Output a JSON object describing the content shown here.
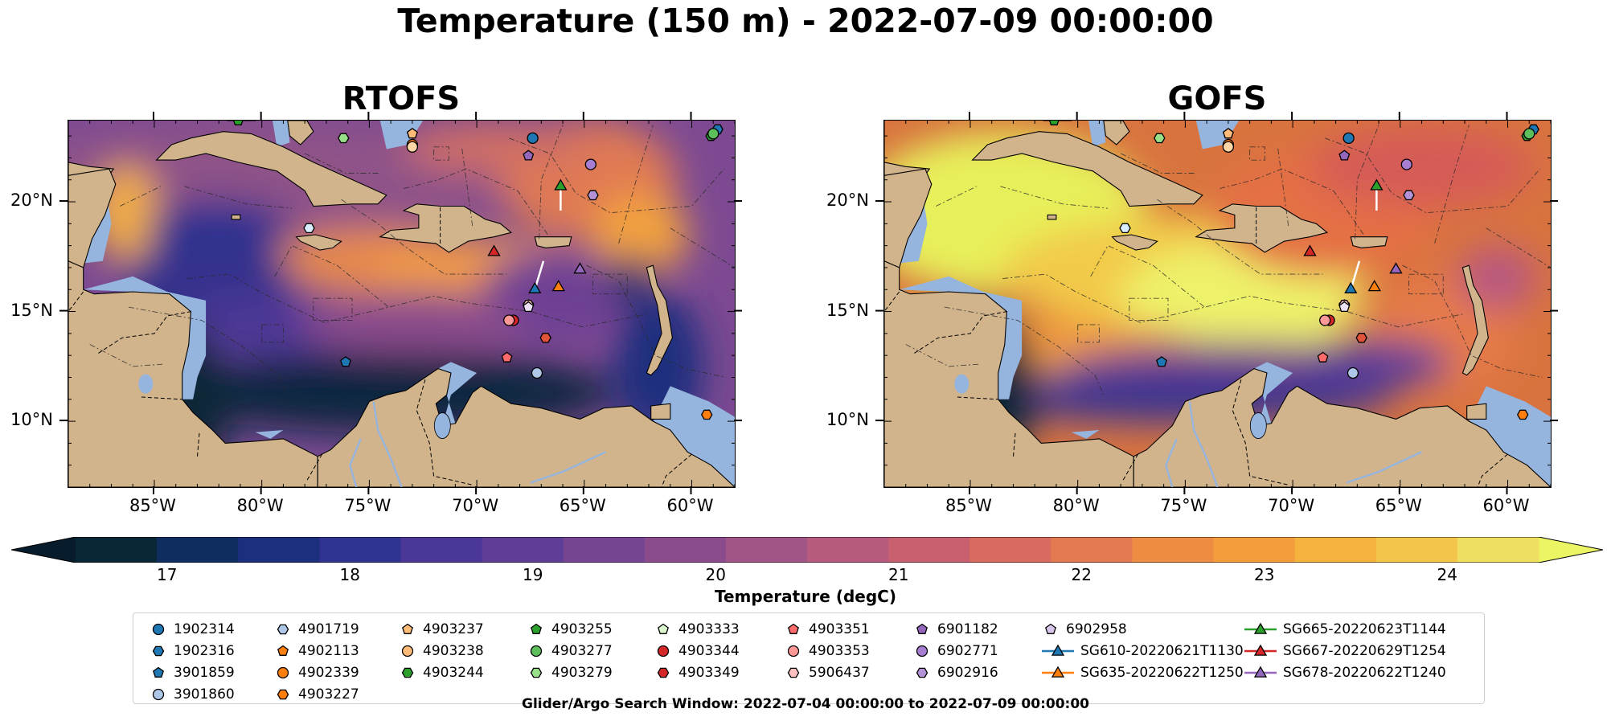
{
  "figure": {
    "title": "Temperature (150 m) - 2022-07-09 00:00:00",
    "footer": "Glider/Argo Search Window: 2022-07-04 00:00:00 to 2022-07-09 00:00:00"
  },
  "maps": [
    {
      "id": "rtofs",
      "title": "RTOFS",
      "model": "RTOFS"
    },
    {
      "id": "gofs",
      "title": "GOFS",
      "model": "GOFS"
    }
  ],
  "axes": {
    "lon_labels": [
      "85°W",
      "80°W",
      "75°W",
      "70°W",
      "65°W",
      "60°W"
    ],
    "lon_values": [
      -85,
      -80,
      -75,
      -70,
      -65,
      -60
    ],
    "lat_labels": [
      "20°N",
      "15°N",
      "10°N"
    ],
    "lat_values": [
      20,
      15,
      10
    ],
    "lon_range": [
      -89,
      -58
    ],
    "lat_range": [
      7,
      23.7
    ]
  },
  "colorbar": {
    "label": "Temperature (degC)",
    "ticks": [
      "17",
      "18",
      "19",
      "20",
      "21",
      "22",
      "23",
      "24"
    ],
    "tick_values": [
      17,
      18,
      19,
      20,
      21,
      22,
      23,
      24
    ],
    "range": [
      16.5,
      24.5
    ],
    "extend": "both",
    "colors": [
      "#0a2738",
      "#0f2d5e",
      "#1b2f7e",
      "#2f3290",
      "#4a3798",
      "#5f3e98",
      "#754592",
      "#8a4c8c",
      "#a15488",
      "#b65a7e",
      "#c96070",
      "#d86a60",
      "#e47a50",
      "#ee8c43",
      "#f39d3c",
      "#f5b23e",
      "#f3c64b",
      "#eede62"
    ],
    "under_color": "#071c2c",
    "over_color": "#ebf563"
  },
  "legend": {
    "columns": [
      [
        {
          "label": "1902314",
          "marker": "circle",
          "color": "#1f77b4"
        },
        {
          "label": "1902316",
          "marker": "hexagon",
          "color": "#1f77b4"
        },
        {
          "label": "3901859",
          "marker": "pentagon",
          "color": "#1f77b4"
        },
        {
          "label": "3901860",
          "marker": "circle",
          "color": "#aec7e8"
        }
      ],
      [
        {
          "label": "4901719",
          "marker": "hexagon",
          "color": "#aec7e8"
        },
        {
          "label": "4902113",
          "marker": "pentagon",
          "color": "#ff7f0e"
        },
        {
          "label": "4902339",
          "marker": "circle",
          "color": "#ff7f0e"
        },
        {
          "label": "4903227",
          "marker": "hexagon",
          "color": "#ff7f0e"
        }
      ],
      [
        {
          "label": "4903237",
          "marker": "pentagon",
          "color": "#ffbb78"
        },
        {
          "label": "4903238",
          "marker": "circle",
          "color": "#ffbb78"
        },
        {
          "label": "4903244",
          "marker": "hexagon",
          "color": "#2ca02c"
        }
      ],
      [
        {
          "label": "4903255",
          "marker": "pentagon",
          "color": "#2ca02c"
        },
        {
          "label": "4903277",
          "marker": "circle",
          "color": "#5cbf5c"
        },
        {
          "label": "4903279",
          "marker": "hexagon",
          "color": "#98df8a"
        }
      ],
      [
        {
          "label": "4903333",
          "marker": "pentagon",
          "color": "#d9f7cf"
        },
        {
          "label": "4903344",
          "marker": "circle",
          "color": "#d62728"
        },
        {
          "label": "4903349",
          "marker": "hexagon",
          "color": "#d62728"
        }
      ],
      [
        {
          "label": "4903351",
          "marker": "pentagon",
          "color": "#ff6b6b"
        },
        {
          "label": "4903353",
          "marker": "circle",
          "color": "#ff9896"
        },
        {
          "label": "5906437",
          "marker": "hexagon",
          "color": "#ffc0bf"
        }
      ],
      [
        {
          "label": "6901182",
          "marker": "pentagon",
          "color": "#9467bd"
        },
        {
          "label": "6902771",
          "marker": "circle",
          "color": "#a77ed1"
        },
        {
          "label": "6902916",
          "marker": "hexagon",
          "color": "#b392d6"
        }
      ],
      [
        {
          "label": "6902958",
          "marker": "pentagon",
          "color": "#d8c6ea"
        },
        {
          "label": "SG610-20220621T1130",
          "marker": "triangle-line",
          "color": "#1f77b4"
        },
        {
          "label": "SG635-20220622T1250",
          "marker": "triangle-line",
          "color": "#ff7f0e"
        }
      ],
      [
        {
          "label": "SG665-20220623T1144",
          "marker": "triangle-line",
          "color": "#2ca02c"
        },
        {
          "label": "SG667-20220629T1254",
          "marker": "triangle-line",
          "color": "#d62728"
        },
        {
          "label": "SG678-20220622T1240",
          "marker": "triangle-line",
          "color": "#9467bd"
        }
      ]
    ]
  },
  "observations": [
    {
      "id": "1902314",
      "lon": -67.4,
      "lat": 22.9
    },
    {
      "id": "1902316",
      "lon": -58.8,
      "lat": 23.3
    },
    {
      "id": "3901859",
      "lon": -76.1,
      "lat": 12.7
    },
    {
      "id": "3901860",
      "lon": -67.2,
      "lat": 12.2
    },
    {
      "id": "4901719",
      "lon": -77.8,
      "lat": 18.8
    },
    {
      "id": "4902113",
      "lon": -73.0,
      "lat": 23.1
    },
    {
      "id": "4902339",
      "lon": -73.0,
      "lat": 22.6
    },
    {
      "id": "4903227",
      "lon": -59.3,
      "lat": 10.3
    },
    {
      "id": "4903237",
      "lon": -73.0,
      "lat": 23.1
    },
    {
      "id": "4903238",
      "lon": -73.0,
      "lat": 22.5
    },
    {
      "id": "4903244",
      "lon": -59.1,
      "lat": 23.0
    },
    {
      "id": "4903255",
      "lon": -81.1,
      "lat": 23.7
    },
    {
      "id": "4903277",
      "lon": -59.0,
      "lat": 23.1
    },
    {
      "id": "4903279",
      "lon": -76.2,
      "lat": 22.9
    },
    {
      "id": "4903333",
      "lon": -67.6,
      "lat": 15.3
    },
    {
      "id": "4903344",
      "lon": -68.3,
      "lat": 14.6
    },
    {
      "id": "4903349",
      "lon": -66.8,
      "lat": 13.8
    },
    {
      "id": "4903351",
      "lon": -68.6,
      "lat": 12.9
    },
    {
      "id": "4903353",
      "lon": -68.5,
      "lat": 14.6
    },
    {
      "id": "5906437",
      "lon": -67.6,
      "lat": 15.3
    },
    {
      "id": "6901182",
      "lon": -67.6,
      "lat": 22.1
    },
    {
      "id": "6902771",
      "lon": -64.7,
      "lat": 21.7
    },
    {
      "id": "6902916",
      "lon": -64.6,
      "lat": 20.3
    },
    {
      "id": "6902958",
      "lon": -67.6,
      "lat": 15.2
    },
    {
      "id": "SG610-20220621T1130",
      "lon": -67.3,
      "lat": 16.0
    },
    {
      "id": "SG635-20220622T1250",
      "lon": -66.2,
      "lat": 16.1
    },
    {
      "id": "SG665-20220623T1144",
      "lon": -66.1,
      "lat": 20.7
    },
    {
      "id": "SG667-20220629T1254",
      "lon": -69.2,
      "lat": 17.7
    },
    {
      "id": "SG678-20220622T1240",
      "lon": -65.2,
      "lat": 16.9
    }
  ]
}
